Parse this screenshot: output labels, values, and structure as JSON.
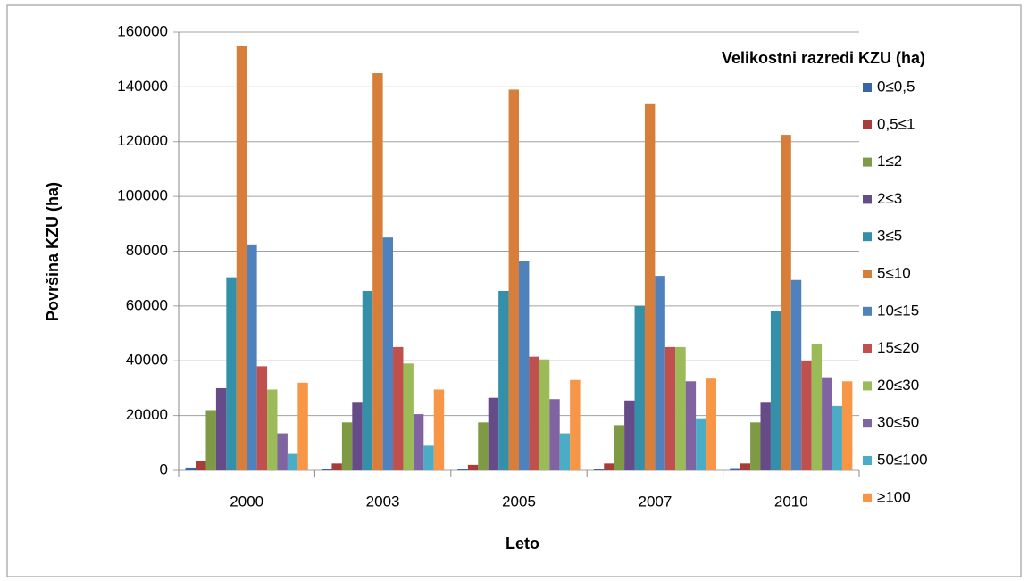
{
  "chart_data": {
    "type": "bar",
    "x_label": "Leto",
    "y_label": "Površina KZU (ha)",
    "legend_title": "Velikostni razredi KZU (ha)",
    "categories": [
      "2000",
      "2003",
      "2005",
      "2007",
      "2010"
    ],
    "series": [
      {
        "name": "0≤0,5",
        "color": "#3a65a5",
        "values": [
          1000,
          500,
          500,
          500,
          800
        ]
      },
      {
        "name": "0,5≤1",
        "color": "#a63d3a",
        "values": [
          3500,
          2500,
          2000,
          2500,
          2500
        ]
      },
      {
        "name": "1≤2",
        "color": "#7f9a45",
        "values": [
          22000,
          17500,
          17500,
          16500,
          17500
        ]
      },
      {
        "name": "2≤3",
        "color": "#654b87",
        "values": [
          30000,
          25000,
          26500,
          25500,
          25000
        ]
      },
      {
        "name": "3≤5",
        "color": "#3490a8",
        "values": [
          70500,
          65500,
          65500,
          60000,
          58000
        ]
      },
      {
        "name": "5≤10",
        "color": "#d77f3a",
        "values": [
          155000,
          145000,
          139000,
          134000,
          122500
        ]
      },
      {
        "name": "10≤15",
        "color": "#4f81bd",
        "values": [
          82500,
          85000,
          76500,
          71000,
          69500
        ]
      },
      {
        "name": "15≤20",
        "color": "#c0504d",
        "values": [
          38000,
          45000,
          41500,
          45000,
          40000
        ]
      },
      {
        "name": "20≤30",
        "color": "#9bbb59",
        "values": [
          29500,
          39000,
          40500,
          45000,
          46000
        ]
      },
      {
        "name": "30≤50",
        "color": "#8064a2",
        "values": [
          13500,
          20500,
          26000,
          32500,
          34000
        ]
      },
      {
        "name": "50≤100",
        "color": "#4bacc6",
        "values": [
          6000,
          9000,
          13500,
          19000,
          23500
        ]
      },
      {
        "name": "≥100",
        "color": "#f79646",
        "values": [
          32000,
          29500,
          33000,
          33500,
          32500
        ]
      }
    ],
    "ylim": [
      0,
      160000
    ],
    "yticks": [
      0,
      20000,
      40000,
      60000,
      80000,
      100000,
      120000,
      140000,
      160000
    ],
    "grid": true
  }
}
